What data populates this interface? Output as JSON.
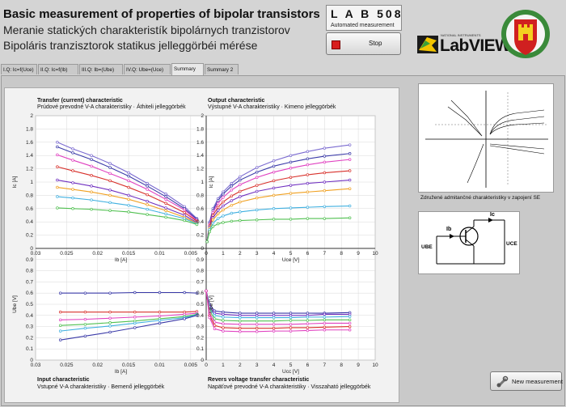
{
  "header": {
    "title_en": "Basic measurement of properties of bipolar transistors",
    "title_sk": "Meranie statických charakteristík bipolárnych tranzistorov",
    "title_hu": "Bipoláris tranzisztorok statikus jelleggörbéi mérése"
  },
  "lab": {
    "name": "L A B   508",
    "subtitle": "Automated measurement"
  },
  "stop_button": {
    "label": "Stop"
  },
  "labview_logo": {
    "small": "NATIONAL INSTRUMENTS",
    "brand": "LabVIEW"
  },
  "tabs": [
    {
      "label": "I.Q: Ic=f(Uce)"
    },
    {
      "label": "II.Q: Ic=f(Ib)"
    },
    {
      "label": "III.Q: Ib=(Ube)"
    },
    {
      "label": "IV.Q: Ube=(Uce)"
    },
    {
      "label": "Summary"
    },
    {
      "label": "Summary 2"
    }
  ],
  "charts": {
    "transfer": {
      "title": "Transfer (current) characteristic",
      "subtitle": "Prúdové prevodné V-A charakteristiky · Áthiteli jelleggörbék",
      "ylabel": "Ic [A]",
      "xlabel": "Ib [A]"
    },
    "output": {
      "title": "Output characteristic",
      "subtitle": "Výstupné V-A charakteristiky · Kimeno jelleggörbék",
      "ylabel": "Ic [A]",
      "xlabel": "Uce [V]"
    },
    "input": {
      "title": "Input characteristic",
      "subtitle": "Vstupné V-A charakteristiky · Bemenő jelleggörbék",
      "ylabel": "Ube [V]",
      "xlabel": "Ib [A]"
    },
    "reverse": {
      "title": "Revers voltage transfer characteristic",
      "subtitle": "Napäťové prevodné V-A charakteristiky · Visszaható jelleggörbék",
      "ylabel": "Ube [V]",
      "xlabel": "Ucc [V]"
    }
  },
  "ticks": {
    "ic_y": [
      "2",
      "1.8",
      "1.6",
      "1.4",
      "1.2",
      "1",
      "0.8",
      "0.6",
      "0.4",
      "0.2",
      "0"
    ],
    "ib_x": [
      "0.03",
      "0.025",
      "0.02",
      "0.015",
      "0.01",
      "0.005"
    ],
    "uce_x": [
      "0",
      "1",
      "2",
      "3",
      "4",
      "5",
      "6",
      "7",
      "8",
      "9",
      "10"
    ],
    "ube_y": [
      "1",
      "0.9",
      "0.8",
      "0.7",
      "0.6",
      "0.5",
      "0.4",
      "0.3",
      "0.2",
      "0.1",
      "0"
    ]
  },
  "right_panel": {
    "caption": "Združené admitančné charakteristiky v zapojení SE",
    "circuit_labels": {
      "ib": "Ib",
      "ic": "Ic",
      "ube": "UBE",
      "uce": "UCE"
    }
  },
  "new_button": {
    "label": "New measurement"
  },
  "colors": {
    "series": [
      "#7a6ad0",
      "#3a3aa8",
      "#e040c0",
      "#d8302a",
      "#7030c0",
      "#f0a020",
      "#40b0e0",
      "#50c050"
    ]
  },
  "chart_data": [
    {
      "type": "line",
      "name": "transfer",
      "ylim": [
        0,
        2
      ],
      "x_axis": "Ib reversed 0.03 → 0.0025",
      "series": [
        {
          "x": [
            0.0265,
            0.024,
            0.021,
            0.018,
            0.015,
            0.012,
            0.009,
            0.006,
            0.004
          ],
          "y": [
            1.6,
            1.5,
            1.4,
            1.28,
            1.14,
            0.98,
            0.82,
            0.63,
            0.45
          ]
        },
        {
          "x": [
            0.0265,
            0.024,
            0.021,
            0.018,
            0.015,
            0.012,
            0.009,
            0.006,
            0.004
          ],
          "y": [
            1.53,
            1.44,
            1.34,
            1.22,
            1.09,
            0.94,
            0.78,
            0.6,
            0.44
          ]
        },
        {
          "x": [
            0.0265,
            0.024,
            0.021,
            0.018,
            0.015,
            0.012,
            0.009,
            0.006,
            0.004
          ],
          "y": [
            1.41,
            1.33,
            1.24,
            1.13,
            1.02,
            0.89,
            0.74,
            0.58,
            0.42
          ]
        },
        {
          "x": [
            0.0265,
            0.024,
            0.021,
            0.018,
            0.015,
            0.012,
            0.009,
            0.006,
            0.004
          ],
          "y": [
            1.23,
            1.17,
            1.1,
            1.02,
            0.92,
            0.81,
            0.68,
            0.54,
            0.41
          ]
        },
        {
          "x": [
            0.0265,
            0.024,
            0.021,
            0.018,
            0.015,
            0.012,
            0.009,
            0.006,
            0.004
          ],
          "y": [
            1.03,
            0.99,
            0.94,
            0.88,
            0.8,
            0.71,
            0.61,
            0.5,
            0.39
          ]
        },
        {
          "x": [
            0.0265,
            0.024,
            0.021,
            0.018,
            0.015,
            0.012,
            0.009,
            0.006,
            0.004
          ],
          "y": [
            0.92,
            0.89,
            0.85,
            0.8,
            0.74,
            0.66,
            0.57,
            0.47,
            0.38
          ]
        },
        {
          "x": [
            0.0265,
            0.024,
            0.021,
            0.018,
            0.015,
            0.012,
            0.009,
            0.006,
            0.004
          ],
          "y": [
            0.78,
            0.76,
            0.73,
            0.69,
            0.65,
            0.59,
            0.52,
            0.45,
            0.37
          ]
        },
        {
          "x": [
            0.0265,
            0.024,
            0.021,
            0.018,
            0.015,
            0.012,
            0.009,
            0.006,
            0.004
          ],
          "y": [
            0.61,
            0.6,
            0.59,
            0.57,
            0.55,
            0.51,
            0.47,
            0.42,
            0.36
          ]
        }
      ]
    },
    {
      "type": "line",
      "name": "output",
      "xlim": [
        0,
        10
      ],
      "ylim": [
        0,
        2
      ],
      "series": [
        {
          "x": [
            0.05,
            0.2,
            0.4,
            0.7,
            1,
            1.5,
            2,
            3,
            4,
            5,
            6,
            7,
            8.5
          ],
          "y": [
            0.1,
            0.4,
            0.6,
            0.75,
            0.85,
            0.98,
            1.08,
            1.22,
            1.32,
            1.4,
            1.46,
            1.51,
            1.56
          ]
        },
        {
          "x": [
            0.05,
            0.2,
            0.4,
            0.7,
            1,
            1.5,
            2,
            3,
            4,
            5,
            6,
            7,
            8.5
          ],
          "y": [
            0.1,
            0.38,
            0.57,
            0.72,
            0.82,
            0.94,
            1.03,
            1.15,
            1.24,
            1.3,
            1.35,
            1.39,
            1.43
          ]
        },
        {
          "x": [
            0.05,
            0.2,
            0.4,
            0.7,
            1,
            1.5,
            2,
            3,
            4,
            5,
            6,
            7,
            8.5
          ],
          "y": [
            0.1,
            0.36,
            0.54,
            0.68,
            0.77,
            0.88,
            0.96,
            1.07,
            1.15,
            1.21,
            1.26,
            1.3,
            1.34
          ]
        },
        {
          "x": [
            0.05,
            0.2,
            0.4,
            0.7,
            1,
            1.5,
            2,
            3,
            4,
            5,
            6,
            7,
            8.5
          ],
          "y": [
            0.1,
            0.34,
            0.5,
            0.62,
            0.7,
            0.79,
            0.86,
            0.95,
            1.02,
            1.07,
            1.11,
            1.14,
            1.17
          ]
        },
        {
          "x": [
            0.05,
            0.2,
            0.4,
            0.7,
            1,
            1.5,
            2,
            3,
            4,
            5,
            6,
            7,
            8.5
          ],
          "y": [
            0.1,
            0.32,
            0.46,
            0.57,
            0.64,
            0.72,
            0.78,
            0.86,
            0.91,
            0.95,
            0.98,
            1.0,
            1.03
          ]
        },
        {
          "x": [
            0.05,
            0.2,
            0.4,
            0.7,
            1,
            1.5,
            2,
            3,
            4,
            5,
            6,
            7,
            8.5
          ],
          "y": [
            0.1,
            0.3,
            0.43,
            0.52,
            0.58,
            0.65,
            0.7,
            0.76,
            0.8,
            0.83,
            0.85,
            0.87,
            0.9
          ]
        },
        {
          "x": [
            0.05,
            0.2,
            0.4,
            0.7,
            1,
            1.5,
            2,
            3,
            4,
            5,
            6,
            7,
            8.5
          ],
          "y": [
            0.1,
            0.28,
            0.38,
            0.45,
            0.49,
            0.53,
            0.55,
            0.58,
            0.6,
            0.61,
            0.62,
            0.63,
            0.64
          ]
        },
        {
          "x": [
            0.05,
            0.2,
            0.4,
            0.7,
            1,
            1.5,
            2,
            3,
            4,
            5,
            6,
            7,
            8.5
          ],
          "y": [
            0.1,
            0.25,
            0.33,
            0.37,
            0.39,
            0.41,
            0.42,
            0.43,
            0.44,
            0.44,
            0.45,
            0.45,
            0.46
          ]
        }
      ]
    },
    {
      "type": "line",
      "name": "input",
      "ylim": [
        0,
        1
      ],
      "series": [
        {
          "x": [
            0.026,
            0.022,
            0.018,
            0.014,
            0.01,
            0.006,
            0.004
          ],
          "y": [
            0.6,
            0.6,
            0.6,
            0.605,
            0.605,
            0.605,
            0.6
          ]
        },
        {
          "x": [
            0.026,
            0.022,
            0.018,
            0.014,
            0.01,
            0.006,
            0.004
          ],
          "y": [
            0.43,
            0.43,
            0.43,
            0.43,
            0.43,
            0.43,
            0.435
          ]
        },
        {
          "x": [
            0.026,
            0.022,
            0.018,
            0.014,
            0.01,
            0.006,
            0.004
          ],
          "y": [
            0.36,
            0.365,
            0.375,
            0.385,
            0.395,
            0.41,
            0.42
          ]
        },
        {
          "x": [
            0.026,
            0.022,
            0.018,
            0.014,
            0.01,
            0.006,
            0.004
          ],
          "y": [
            0.31,
            0.32,
            0.335,
            0.35,
            0.37,
            0.39,
            0.41
          ]
        },
        {
          "x": [
            0.026,
            0.022,
            0.018,
            0.014,
            0.01,
            0.006,
            0.004
          ],
          "y": [
            0.26,
            0.285,
            0.305,
            0.33,
            0.355,
            0.38,
            0.405
          ]
        },
        {
          "x": [
            0.026,
            0.022,
            0.018,
            0.014,
            0.01,
            0.006,
            0.004
          ],
          "y": [
            0.18,
            0.215,
            0.25,
            0.29,
            0.33,
            0.37,
            0.4
          ]
        }
      ]
    },
    {
      "type": "line",
      "name": "reverse",
      "xlim": [
        0,
        10
      ],
      "ylim": [
        0,
        1
      ],
      "series": [
        {
          "x": [
            0,
            0.2,
            0.5,
            1,
            2,
            3,
            4,
            5,
            6,
            7,
            8.5
          ],
          "y": [
            0.62,
            0.5,
            0.44,
            0.43,
            0.42,
            0.42,
            0.42,
            0.42,
            0.42,
            0.42,
            0.425
          ]
        },
        {
          "x": [
            0,
            0.2,
            0.5,
            1,
            2,
            3,
            4,
            5,
            6,
            7,
            8.5
          ],
          "y": [
            0.62,
            0.48,
            0.42,
            0.41,
            0.4,
            0.4,
            0.4,
            0.4,
            0.4,
            0.41,
            0.41
          ]
        },
        {
          "x": [
            0,
            0.2,
            0.5,
            1,
            2,
            3,
            4,
            5,
            6,
            7,
            8.5
          ],
          "y": [
            0.62,
            0.46,
            0.4,
            0.385,
            0.38,
            0.38,
            0.38,
            0.38,
            0.385,
            0.385,
            0.39
          ]
        },
        {
          "x": [
            0,
            0.2,
            0.5,
            1,
            2,
            3,
            4,
            5,
            6,
            7,
            8.5
          ],
          "y": [
            0.62,
            0.44,
            0.37,
            0.355,
            0.35,
            0.35,
            0.35,
            0.355,
            0.355,
            0.36,
            0.36
          ]
        },
        {
          "x": [
            0,
            0.2,
            0.5,
            1,
            2,
            3,
            4,
            5,
            6,
            7,
            8.5
          ],
          "y": [
            0.62,
            0.42,
            0.34,
            0.325,
            0.32,
            0.32,
            0.32,
            0.32,
            0.325,
            0.33,
            0.33
          ]
        },
        {
          "x": [
            0,
            0.2,
            0.5,
            1,
            2,
            3,
            4,
            5,
            6,
            7,
            8.5
          ],
          "y": [
            0.62,
            0.4,
            0.31,
            0.29,
            0.285,
            0.285,
            0.285,
            0.29,
            0.29,
            0.295,
            0.3
          ]
        },
        {
          "x": [
            0,
            0.2,
            0.5,
            1,
            2,
            3,
            4,
            5,
            6,
            7,
            8.5
          ],
          "y": [
            0.62,
            0.38,
            0.28,
            0.26,
            0.255,
            0.255,
            0.26,
            0.26,
            0.265,
            0.27,
            0.27
          ]
        }
      ]
    }
  ]
}
